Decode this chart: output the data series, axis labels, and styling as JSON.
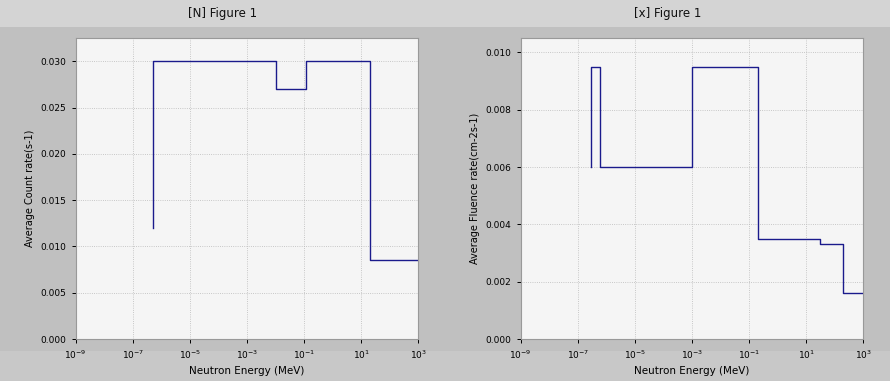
{
  "left_plot": {
    "ylabel": "Average Count rate(s-1)",
    "xlabel": "Neutron Energy (MeV)",
    "xlim_low": 1e-09,
    "xlim_high": 1000.0,
    "ylim": [
      0.0,
      0.0325
    ],
    "yticks": [
      0.0,
      0.005,
      0.01,
      0.015,
      0.02,
      0.025,
      0.03
    ],
    "color": "#1a1a8c",
    "step_x": [
      5e-07,
      5e-07,
      0.01,
      0.01,
      0.12,
      0.12,
      20.0,
      20.0,
      1000.0
    ],
    "step_y": [
      0.012,
      0.03,
      0.03,
      0.027,
      0.027,
      0.03,
      0.03,
      0.0085,
      0.0085
    ]
  },
  "right_plot": {
    "ylabel": "Average Fluence rate(cm-2s-1)",
    "xlabel": "Neutron Energy (MeV)",
    "xlim_low": 1e-09,
    "xlim_high": 1000.0,
    "ylim": [
      0.0,
      0.0105
    ],
    "yticks": [
      0.0,
      0.002,
      0.004,
      0.006,
      0.008,
      0.01
    ],
    "color": "#1a1a8c",
    "step_x": [
      3e-07,
      3e-07,
      6e-07,
      6e-07,
      0.001,
      0.001,
      0.2,
      0.2,
      30.0,
      30.0,
      200.0,
      200.0,
      1000.0
    ],
    "step_y": [
      0.006,
      0.0095,
      0.0095,
      0.006,
      0.006,
      0.0095,
      0.0095,
      0.0035,
      0.0035,
      0.0033,
      0.0033,
      0.0016,
      0.0016
    ]
  },
  "bg_color": "#c0c0c0",
  "plot_bg": "#f5f5f5",
  "grid_color": "#b8b8b8",
  "left_title": "[N] Figure 1",
  "right_title": "[x] Figure 1",
  "titlebar_bg": "#d4d4d4",
  "toolbar_bg": "#c8c8c8"
}
